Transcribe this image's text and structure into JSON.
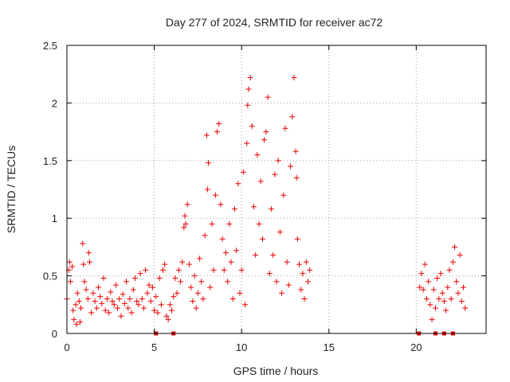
{
  "chart_data": {
    "type": "scatter",
    "title": "Day 277 of 2024, SRMTID for receiver ac72",
    "xlabel": "GPS time / hours",
    "ylabel": "SRMTID / TECUs",
    "xlim": [
      0,
      24
    ],
    "ylim": [
      0,
      2.5
    ],
    "x_ticks": [
      "0",
      "5",
      "10",
      "15",
      "20"
    ],
    "y_ticks": [
      "0",
      "0.5",
      "1",
      "1.5",
      "2",
      "2.5"
    ],
    "grid": true,
    "marker": "plus",
    "color": "#ee0000",
    "series": [
      {
        "name": "SRMTID",
        "points": [
          [
            0.0,
            0.3
          ],
          [
            0.1,
            0.55
          ],
          [
            0.15,
            0.62
          ],
          [
            0.2,
            0.45
          ],
          [
            0.3,
            0.58
          ],
          [
            0.35,
            0.2
          ],
          [
            0.4,
            0.12
          ],
          [
            0.5,
            0.25
          ],
          [
            0.55,
            0.08
          ],
          [
            0.6,
            0.35
          ],
          [
            0.7,
            0.28
          ],
          [
            0.75,
            0.1
          ],
          [
            0.8,
            0.22
          ],
          [
            0.9,
            0.78
          ],
          [
            0.95,
            0.6
          ],
          [
            1.0,
            0.45
          ],
          [
            1.1,
            0.38
          ],
          [
            1.2,
            0.3
          ],
          [
            1.25,
            0.7
          ],
          [
            1.3,
            0.62
          ],
          [
            1.4,
            0.18
          ],
          [
            1.5,
            0.35
          ],
          [
            1.6,
            0.28
          ],
          [
            1.7,
            0.22
          ],
          [
            1.8,
            0.4
          ],
          [
            1.9,
            0.32
          ],
          [
            2.0,
            0.26
          ],
          [
            2.1,
            0.48
          ],
          [
            2.2,
            0.2
          ],
          [
            2.3,
            0.3
          ],
          [
            2.4,
            0.18
          ],
          [
            2.5,
            0.36
          ],
          [
            2.6,
            0.28
          ],
          [
            2.7,
            0.25
          ],
          [
            2.8,
            0.42
          ],
          [
            2.9,
            0.22
          ],
          [
            3.0,
            0.3
          ],
          [
            3.1,
            0.15
          ],
          [
            3.2,
            0.34
          ],
          [
            3.3,
            0.26
          ],
          [
            3.4,
            0.45
          ],
          [
            3.5,
            0.22
          ],
          [
            3.6,
            0.3
          ],
          [
            3.7,
            0.18
          ],
          [
            3.8,
            0.38
          ],
          [
            3.9,
            0.48
          ],
          [
            4.0,
            0.28
          ],
          [
            4.1,
            0.25
          ],
          [
            4.2,
            0.52
          ],
          [
            4.3,
            0.3
          ],
          [
            4.4,
            0.22
          ],
          [
            4.5,
            0.55
          ],
          [
            4.6,
            0.35
          ],
          [
            4.7,
            0.42
          ],
          [
            4.8,
            0.28
          ],
          [
            4.9,
            0.4
          ],
          [
            5.0,
            0.2
          ],
          [
            5.1,
            0.32
          ],
          [
            5.2,
            0.18
          ],
          [
            5.3,
            0.48
          ],
          [
            5.4,
            0.25
          ],
          [
            5.5,
            0.55
          ],
          [
            5.6,
            0.6
          ],
          [
            5.7,
            0.15
          ],
          [
            5.8,
            0.12
          ],
          [
            5.9,
            0.25
          ],
          [
            6.0,
            0.2
          ],
          [
            6.1,
            0.32
          ],
          [
            6.2,
            0.48
          ],
          [
            6.3,
            0.35
          ],
          [
            6.4,
            0.55
          ],
          [
            6.5,
            0.45
          ],
          [
            6.6,
            0.62
          ],
          [
            6.7,
            0.92
          ],
          [
            6.75,
            1.02
          ],
          [
            6.8,
            0.95
          ],
          [
            6.9,
            1.12
          ],
          [
            7.0,
            0.6
          ],
          [
            7.1,
            0.4
          ],
          [
            7.2,
            0.28
          ],
          [
            7.3,
            0.5
          ],
          [
            7.4,
            0.22
          ],
          [
            7.5,
            0.35
          ],
          [
            7.6,
            0.65
          ],
          [
            7.7,
            0.45
          ],
          [
            7.8,
            0.3
          ],
          [
            7.9,
            0.85
          ],
          [
            8.0,
            1.72
          ],
          [
            8.05,
            1.25
          ],
          [
            8.1,
            1.48
          ],
          [
            8.2,
            0.4
          ],
          [
            8.3,
            0.95
          ],
          [
            8.4,
            0.55
          ],
          [
            8.5,
            1.2
          ],
          [
            8.6,
            1.75
          ],
          [
            8.7,
            1.82
          ],
          [
            8.8,
            1.12
          ],
          [
            8.9,
            0.82
          ],
          [
            9.0,
            0.55
          ],
          [
            9.1,
            0.7
          ],
          [
            9.2,
            0.45
          ],
          [
            9.3,
            0.95
          ],
          [
            9.4,
            0.62
          ],
          [
            9.5,
            0.3
          ],
          [
            9.6,
            1.08
          ],
          [
            9.7,
            0.72
          ],
          [
            9.8,
            1.3
          ],
          [
            9.9,
            0.35
          ],
          [
            10.0,
            0.55
          ],
          [
            10.1,
            1.4
          ],
          [
            10.2,
            0.25
          ],
          [
            10.3,
            1.65
          ],
          [
            10.35,
            1.98
          ],
          [
            10.4,
            2.12
          ],
          [
            10.5,
            2.22
          ],
          [
            10.6,
            1.8
          ],
          [
            10.7,
            1.1
          ],
          [
            10.8,
            0.68
          ],
          [
            10.9,
            1.55
          ],
          [
            11.0,
            0.95
          ],
          [
            11.1,
            1.32
          ],
          [
            11.2,
            0.82
          ],
          [
            11.3,
            1.68
          ],
          [
            11.4,
            1.75
          ],
          [
            11.5,
            2.05
          ],
          [
            11.6,
            0.52
          ],
          [
            11.7,
            1.08
          ],
          [
            11.8,
            0.68
          ],
          [
            11.9,
            1.38
          ],
          [
            12.0,
            0.45
          ],
          [
            12.1,
            1.5
          ],
          [
            12.2,
            0.88
          ],
          [
            12.3,
            0.35
          ],
          [
            12.4,
            1.2
          ],
          [
            12.5,
            1.78
          ],
          [
            12.6,
            0.62
          ],
          [
            12.7,
            0.42
          ],
          [
            12.8,
            1.45
          ],
          [
            12.9,
            1.88
          ],
          [
            13.0,
            2.22
          ],
          [
            13.1,
            1.58
          ],
          [
            13.15,
            1.35
          ],
          [
            13.2,
            0.82
          ],
          [
            13.3,
            0.6
          ],
          [
            13.4,
            0.38
          ],
          [
            13.5,
            0.52
          ],
          [
            13.6,
            0.3
          ],
          [
            13.7,
            0.62
          ],
          [
            13.8,
            0.45
          ],
          [
            13.9,
            0.55
          ],
          [
            20.2,
            0.4
          ],
          [
            20.3,
            0.52
          ],
          [
            20.4,
            0.38
          ],
          [
            20.5,
            0.6
          ],
          [
            20.6,
            0.3
          ],
          [
            20.7,
            0.45
          ],
          [
            20.8,
            0.25
          ],
          [
            20.9,
            0.12
          ],
          [
            21.0,
            0.38
          ],
          [
            21.1,
            0.22
          ],
          [
            21.2,
            0.48
          ],
          [
            21.3,
            0.3
          ],
          [
            21.4,
            0.52
          ],
          [
            21.5,
            0.35
          ],
          [
            21.6,
            0.28
          ],
          [
            21.7,
            0.2
          ],
          [
            21.8,
            0.4
          ],
          [
            21.9,
            0.55
          ],
          [
            22.0,
            0.3
          ],
          [
            22.1,
            0.62
          ],
          [
            22.2,
            0.75
          ],
          [
            22.3,
            0.45
          ],
          [
            22.4,
            0.35
          ],
          [
            22.5,
            0.68
          ],
          [
            22.6,
            0.28
          ],
          [
            22.7,
            0.4
          ],
          [
            22.8,
            0.22
          ]
        ]
      }
    ],
    "gap_markers_x": [
      5.1,
      6.1,
      20.15,
      21.1,
      21.6,
      22.1
    ]
  }
}
